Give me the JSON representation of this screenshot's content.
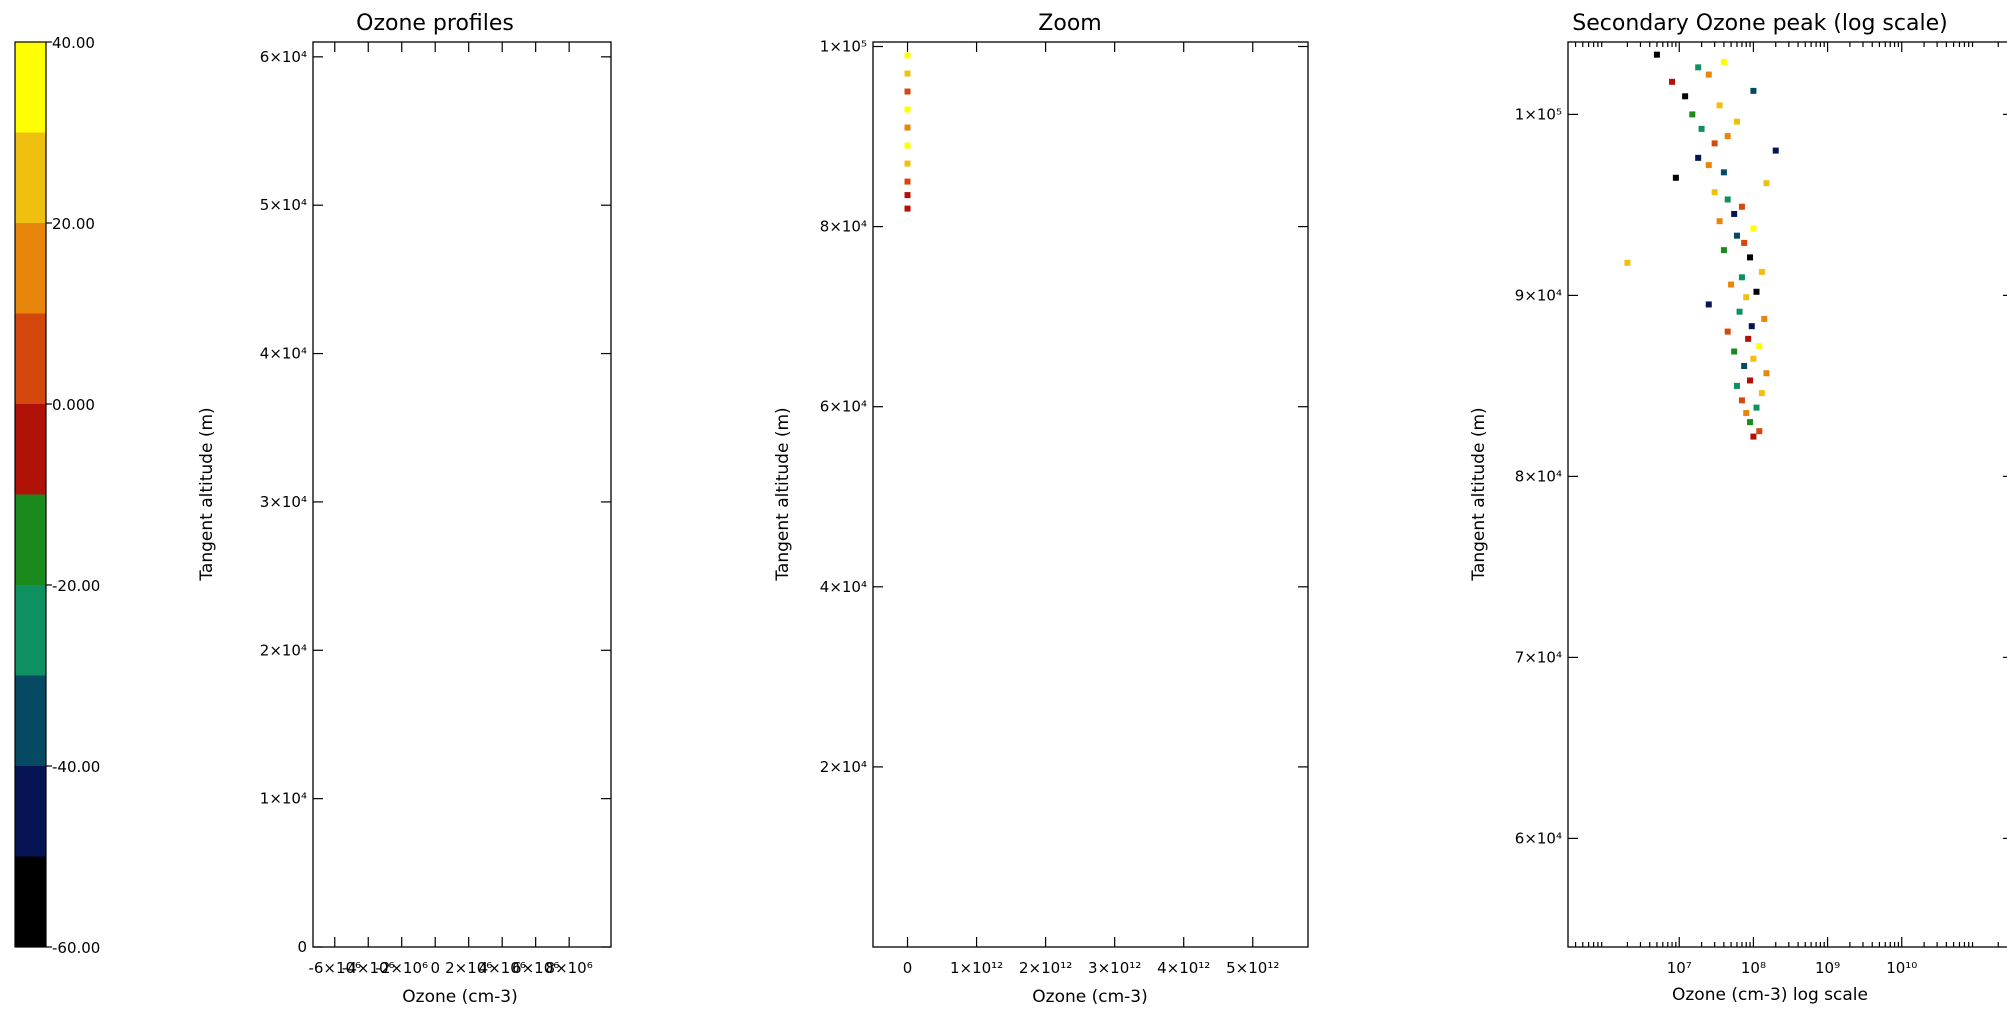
{
  "colorbar": {
    "labels": [
      "40.00",
      "20.00",
      "0.000",
      "-20.00",
      "-40.00",
      "-60.00"
    ],
    "colors": [
      "#ffff00",
      "#f0c010",
      "#e8860c",
      "#d4480e",
      "#b01208",
      "#1a8a1c",
      "#0e9060",
      "#054a62",
      "#071454",
      "#000000"
    ]
  },
  "panels": [
    {
      "title": "Ozone profiles",
      "xlabel": "Ozone (cm-3)",
      "ylabel": "Tangent altitude (m)",
      "ylim": [
        0,
        60000
      ],
      "xtick_labels": [
        "-6×10⁶",
        "-4×10⁶",
        "-2×10⁶",
        "0",
        "2×10⁶",
        "4×10⁶",
        "6×10⁶",
        "8×10⁶"
      ],
      "ytick_labels": [
        "0",
        "1×10⁴",
        "2×10⁴",
        "3×10⁴",
        "4×10⁴",
        "5×10⁴",
        "6×10⁴"
      ]
    },
    {
      "title": "Zoom",
      "xlabel": "Ozone (cm-3)",
      "ylabel": "Tangent altitude (m)",
      "ylim": [
        0,
        100000
      ],
      "xtick_labels": [
        "0",
        "1×10¹²",
        "2×10¹²",
        "3×10¹²",
        "4×10¹²",
        "5×10¹²"
      ],
      "ytick_labels": [
        "2×10⁴",
        "4×10⁴",
        "6×10⁴",
        "8×10⁴",
        "1×10⁵"
      ]
    },
    {
      "title": "Secondary Ozone peak (log scale)",
      "xlabel": "Ozone (cm-3) log scale",
      "ylabel": "Tangent altitude (m)",
      "ylim": [
        54000,
        104000
      ],
      "xlim_log10": [
        5.5,
        11.5
      ],
      "xtick_labels": [
        "10⁷",
        "10⁸",
        "10⁹",
        "10¹⁰"
      ],
      "ytick_labels": [
        "6×10⁴",
        "7×10⁴",
        "8×10⁴",
        "9×10⁴",
        "1×10⁵"
      ]
    }
  ],
  "chart_data": [
    {
      "type": "scatter",
      "title": "Ozone profiles",
      "xlabel": "Ozone (cm-3)",
      "ylabel": "Tangent altitude (m)",
      "xlim": [
        -6000000,
        8000000
      ],
      "ylim": [
        0,
        60000
      ],
      "points": []
    },
    {
      "type": "scatter",
      "title": "Zoom",
      "xlabel": "Ozone (cm-3)",
      "ylabel": "Tangent altitude (m)",
      "xlim": [
        0,
        5000000000000
      ],
      "ylim": [
        0,
        100000
      ],
      "colorbar_range": [
        -60,
        40
      ],
      "points": [
        {
          "x": 0,
          "y": 82000,
          "c": -5
        },
        {
          "x": 0,
          "y": 83500,
          "c": -5
        },
        {
          "x": 0,
          "y": 85000,
          "c": 10
        },
        {
          "x": 0,
          "y": 87000,
          "c": 25
        },
        {
          "x": 0,
          "y": 89000,
          "c": 35
        },
        {
          "x": 0,
          "y": 91000,
          "c": 20
        },
        {
          "x": 0,
          "y": 93000,
          "c": 35
        },
        {
          "x": 0,
          "y": 95000,
          "c": 5
        },
        {
          "x": 0,
          "y": 97000,
          "c": 30
        },
        {
          "x": 0,
          "y": 99000,
          "c": 35
        }
      ]
    },
    {
      "type": "scatter",
      "title": "Secondary Ozone peak (log scale)",
      "xlabel": "Ozone (cm-3) log scale",
      "ylabel": "Tangent altitude (m)",
      "xscale": "log",
      "ylim": [
        54000,
        104000
      ],
      "colorbar_range": [
        -60,
        40
      ],
      "points": [
        {
          "x": 100000000,
          "y": 82200,
          "c": -5
        },
        {
          "x": 120000000,
          "y": 82500,
          "c": 5
        },
        {
          "x": 90000000,
          "y": 83000,
          "c": -15
        },
        {
          "x": 80000000,
          "y": 83500,
          "c": 15
        },
        {
          "x": 110000000,
          "y": 83800,
          "c": -25
        },
        {
          "x": 70000000,
          "y": 84200,
          "c": 10
        },
        {
          "x": 130000000,
          "y": 84600,
          "c": 30
        },
        {
          "x": 60000000,
          "y": 85000,
          "c": -20
        },
        {
          "x": 90000000,
          "y": 85300,
          "c": 0
        },
        {
          "x": 150000000,
          "y": 85700,
          "c": 20
        },
        {
          "x": 75000000,
          "y": 86100,
          "c": -35
        },
        {
          "x": 100000000,
          "y": 86500,
          "c": 25
        },
        {
          "x": 55000000,
          "y": 86900,
          "c": -15
        },
        {
          "x": 120000000,
          "y": 87200,
          "c": 35
        },
        {
          "x": 85000000,
          "y": 87600,
          "c": -5
        },
        {
          "x": 45000000,
          "y": 88000,
          "c": 10
        },
        {
          "x": 95000000,
          "y": 88300,
          "c": -45
        },
        {
          "x": 140000000,
          "y": 88700,
          "c": 20
        },
        {
          "x": 65000000,
          "y": 89100,
          "c": -25
        },
        {
          "x": 25000000,
          "y": 89500,
          "c": -40
        },
        {
          "x": 80000000,
          "y": 89900,
          "c": 30
        },
        {
          "x": 110000000,
          "y": 90200,
          "c": -55
        },
        {
          "x": 50000000,
          "y": 90600,
          "c": 15
        },
        {
          "x": 70000000,
          "y": 91000,
          "c": -20
        },
        {
          "x": 130000000,
          "y": 91300,
          "c": 25
        },
        {
          "x": 2000000,
          "y": 91800,
          "c": 30
        },
        {
          "x": 90000000,
          "y": 92100,
          "c": -50
        },
        {
          "x": 40000000,
          "y": 92500,
          "c": -15
        },
        {
          "x": 75000000,
          "y": 92900,
          "c": 10
        },
        {
          "x": 60000000,
          "y": 93300,
          "c": -30
        },
        {
          "x": 100000000,
          "y": 93700,
          "c": 35
        },
        {
          "x": 35000000,
          "y": 94100,
          "c": 20
        },
        {
          "x": 55000000,
          "y": 94500,
          "c": -45
        },
        {
          "x": 70000000,
          "y": 94900,
          "c": 5
        },
        {
          "x": 45000000,
          "y": 95300,
          "c": -20
        },
        {
          "x": 30000000,
          "y": 95700,
          "c": 25
        },
        {
          "x": 150000000,
          "y": 96200,
          "c": 30
        },
        {
          "x": 9000000,
          "y": 96500,
          "c": -55
        },
        {
          "x": 40000000,
          "y": 96800,
          "c": -35
        },
        {
          "x": 25000000,
          "y": 97200,
          "c": 15
        },
        {
          "x": 18000000,
          "y": 97600,
          "c": -45
        },
        {
          "x": 200000000,
          "y": 98000,
          "c": -40
        },
        {
          "x": 30000000,
          "y": 98400,
          "c": 5
        },
        {
          "x": 45000000,
          "y": 98800,
          "c": 20
        },
        {
          "x": 20000000,
          "y": 99200,
          "c": -25
        },
        {
          "x": 60000000,
          "y": 99600,
          "c": 25
        },
        {
          "x": 15000000,
          "y": 100000,
          "c": -10
        },
        {
          "x": 35000000,
          "y": 100500,
          "c": 30
        },
        {
          "x": 12000000,
          "y": 101000,
          "c": -50
        },
        {
          "x": 100000000,
          "y": 101300,
          "c": -30
        },
        {
          "x": 8000000,
          "y": 101800,
          "c": -5
        },
        {
          "x": 25000000,
          "y": 102200,
          "c": 15
        },
        {
          "x": 18000000,
          "y": 102600,
          "c": -20
        },
        {
          "x": 40000000,
          "y": 102900,
          "c": 35
        },
        {
          "x": 5000000,
          "y": 103300,
          "c": -60
        }
      ]
    }
  ]
}
